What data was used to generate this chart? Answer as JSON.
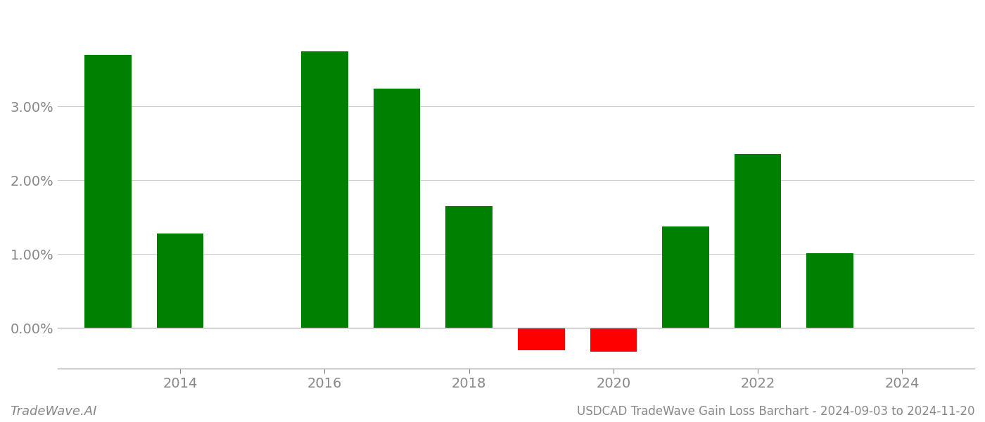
{
  "years": [
    2013,
    2014,
    2016,
    2017,
    2018,
    2019,
    2020,
    2021,
    2022,
    2023
  ],
  "values": [
    3.7,
    1.28,
    3.75,
    3.24,
    1.65,
    -0.3,
    -0.32,
    1.38,
    2.36,
    1.01
  ],
  "bar_width": 0.65,
  "color_positive": "#008000",
  "color_negative": "#ff0000",
  "title": "USDCAD TradeWave Gain Loss Barchart - 2024-09-03 to 2024-11-20",
  "watermark": "TradeWave.AI",
  "ylabel_ticks": [
    0.0,
    1.0,
    2.0,
    3.0
  ],
  "ylim": [
    -0.55,
    4.3
  ],
  "xlim_min": 2012.3,
  "xlim_max": 2025.0,
  "xtick_years": [
    2014,
    2016,
    2018,
    2020,
    2022,
    2024
  ],
  "background_color": "#ffffff",
  "grid_color": "#cccccc",
  "tick_color": "#888888",
  "tick_fontsize": 14,
  "title_fontsize": 12,
  "watermark_fontsize": 13
}
